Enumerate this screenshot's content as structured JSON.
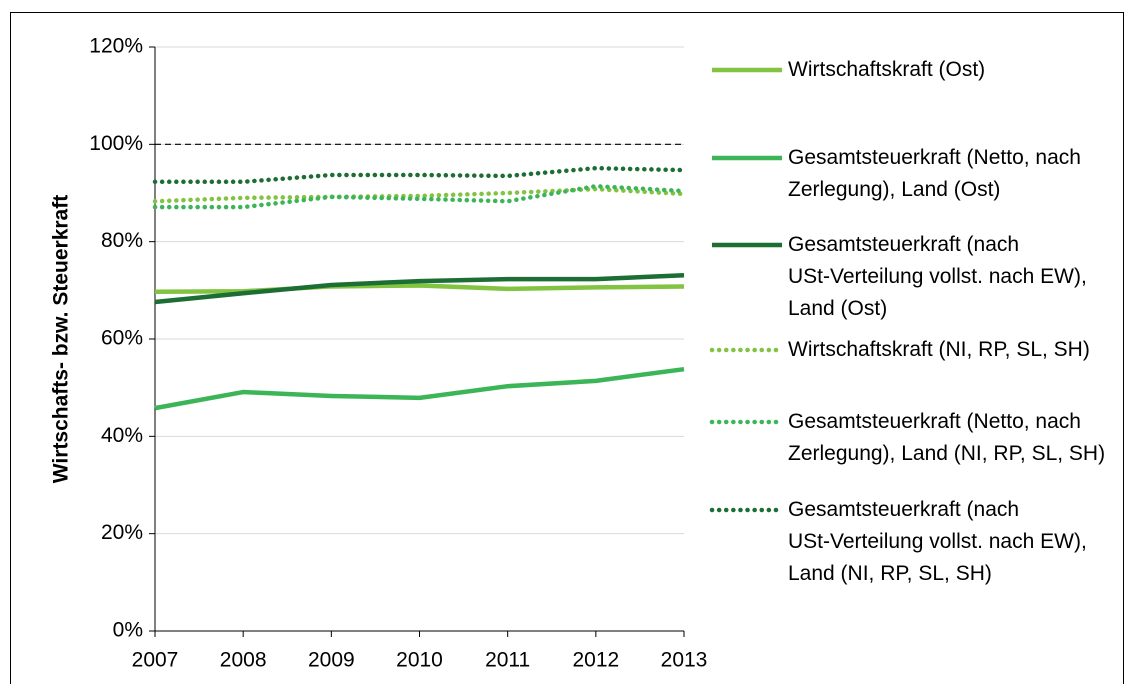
{
  "chart_data": {
    "type": "line",
    "y_axis_label": "Wirtschafts- bzw. Steuerkraft",
    "x": [
      2007,
      2008,
      2009,
      2010,
      2011,
      2012,
      2013
    ],
    "xlim": [
      2007,
      2013
    ],
    "xticks": [
      2007,
      2008,
      2009,
      2010,
      2011,
      2012,
      2013
    ],
    "ylim": [
      0,
      120
    ],
    "yticks": [
      {
        "value": 0,
        "label": "0%"
      },
      {
        "value": 20,
        "label": "20%"
      },
      {
        "value": 40,
        "label": "40%"
      },
      {
        "value": 60,
        "label": "60%"
      },
      {
        "value": 80,
        "label": "80%"
      },
      {
        "value": 100,
        "label": "100%"
      },
      {
        "value": 120,
        "label": "120%"
      }
    ],
    "grid": true,
    "reference_line": 100,
    "legend": "right",
    "series": [
      {
        "name": "Wirtschaftskraft (Ost)",
        "color": "#82c341",
        "style": "solid",
        "values": [
          69.7,
          69.8,
          70.8,
          71.0,
          70.3,
          70.6,
          70.8
        ]
      },
      {
        "name": "Gesamtsteuerkraft (Netto, nach Zerlegung), Land (Ost)",
        "color": "#3cb559",
        "style": "solid",
        "values": [
          45.8,
          49.1,
          48.3,
          47.9,
          50.3,
          51.4,
          53.8
        ]
      },
      {
        "name": "Gesamtsteuerkraft (nach USt-Verteilung vollst. nach EW), Land (Ost)",
        "color": "#1d6e35",
        "style": "solid",
        "values": [
          67.6,
          69.4,
          71.1,
          71.9,
          72.3,
          72.3,
          73.1
        ]
      },
      {
        "name": "Wirtschaftskraft (NI, RP, SL, SH)",
        "color": "#82c341",
        "style": "dotted",
        "values": [
          88.3,
          89.0,
          89.2,
          89.4,
          90.0,
          90.8,
          89.8
        ]
      },
      {
        "name": "Gesamtsteuerkraft (Netto, nach Zerlegung), Land (NI, RP, SL, SH)",
        "color": "#3cb559",
        "style": "dotted",
        "values": [
          87.1,
          87.1,
          89.2,
          88.8,
          88.3,
          91.4,
          90.4
        ]
      },
      {
        "name": "Gesamtsteuerkraft (nach USt-Verteilung vollst. nach EW), Land (NI, RP, SL, SH)",
        "color": "#1d6e35",
        "style": "dotted",
        "values": [
          92.3,
          92.3,
          93.7,
          93.7,
          93.5,
          95.1,
          94.7
        ]
      }
    ]
  }
}
